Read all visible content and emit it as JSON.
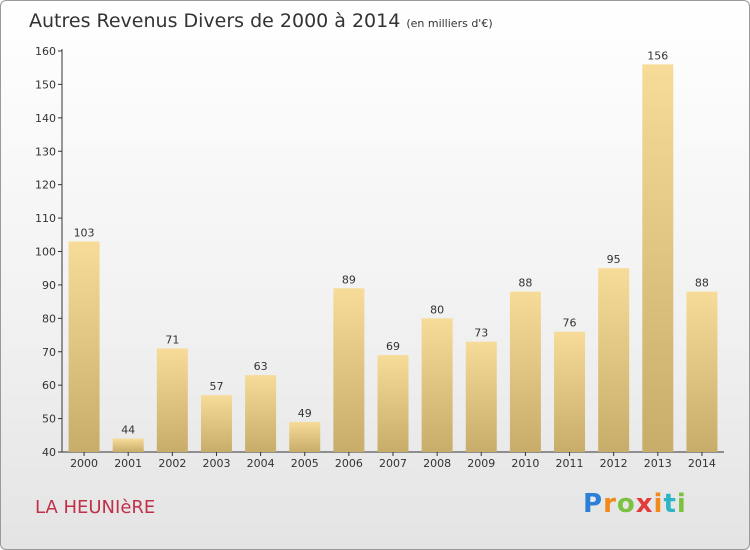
{
  "header": {
    "title": "Autres Revenus Divers de 2000 à 2014",
    "subtitle": "(en milliers d'€)"
  },
  "footer": {
    "place": "LA HEUNIèRE",
    "logo": "Proxiti"
  },
  "colors": {
    "bar_light": "#f6dc98",
    "bar_dark": "#c8ad6a",
    "axis": "#333333",
    "place": "#c0304a"
  },
  "chart_data": {
    "type": "bar",
    "title": "Autres Revenus Divers de 2000 à 2014",
    "subtitle": "(en milliers d'€)",
    "xlabel": "",
    "ylabel": "",
    "categories": [
      "2000",
      "2001",
      "2002",
      "2003",
      "2004",
      "2005",
      "2006",
      "2007",
      "2008",
      "2009",
      "2010",
      "2011",
      "2012",
      "2013",
      "2014"
    ],
    "values": [
      103,
      44,
      71,
      57,
      63,
      49,
      89,
      69,
      80,
      73,
      88,
      76,
      95,
      156,
      88
    ],
    "ylim": [
      40,
      160
    ],
    "yticks": [
      40,
      50,
      60,
      70,
      80,
      90,
      100,
      110,
      120,
      130,
      140,
      150,
      160
    ],
    "grid": false,
    "data_labels": true
  }
}
